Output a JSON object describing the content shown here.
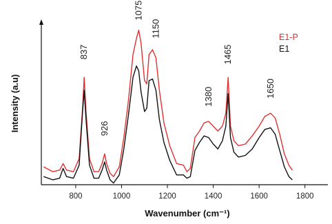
{
  "chart_data": {
    "type": "line",
    "xlabel": "Wavenumber (cm⁻¹)",
    "ylabel": "Intensity (a.u)",
    "xlim": [
      650,
      1900
    ],
    "ylim": [
      0,
      1.0
    ],
    "x_ticks": [
      800,
      1000,
      1200,
      1400,
      1600,
      1800
    ],
    "legend_position": "top-right",
    "series": [
      {
        "name": "E1-P",
        "color": "#e03030",
        "x": [
          660,
          700,
          730,
          745,
          760,
          790,
          815,
          830,
          837,
          845,
          860,
          880,
          900,
          915,
          926,
          935,
          950,
          965,
          990,
          1010,
          1030,
          1050,
          1065,
          1075,
          1085,
          1100,
          1110,
          1120,
          1135,
          1150,
          1165,
          1185,
          1210,
          1240,
          1270,
          1285,
          1300,
          1320,
          1340,
          1360,
          1380,
          1400,
          1420,
          1440,
          1455,
          1465,
          1475,
          1490,
          1510,
          1540,
          1570,
          1600,
          1625,
          1650,
          1670,
          1690,
          1710,
          1730,
          1745
        ],
        "y": [
          0.11,
          0.08,
          0.09,
          0.13,
          0.09,
          0.08,
          0.16,
          0.47,
          0.66,
          0.45,
          0.16,
          0.08,
          0.08,
          0.13,
          0.19,
          0.13,
          0.07,
          0.05,
          0.11,
          0.29,
          0.52,
          0.8,
          0.9,
          0.95,
          0.87,
          0.64,
          0.62,
          0.8,
          0.83,
          0.78,
          0.58,
          0.38,
          0.24,
          0.13,
          0.12,
          0.08,
          0.1,
          0.29,
          0.33,
          0.38,
          0.39,
          0.36,
          0.33,
          0.36,
          0.44,
          0.66,
          0.36,
          0.27,
          0.24,
          0.25,
          0.3,
          0.36,
          0.42,
          0.44,
          0.41,
          0.31,
          0.19,
          0.12,
          0.09
        ]
      },
      {
        "name": "E1",
        "color": "#111111",
        "x": [
          660,
          700,
          730,
          745,
          760,
          790,
          815,
          830,
          837,
          845,
          860,
          880,
          900,
          915,
          926,
          935,
          950,
          965,
          990,
          1010,
          1030,
          1050,
          1065,
          1075,
          1085,
          1100,
          1110,
          1120,
          1135,
          1150,
          1165,
          1185,
          1210,
          1240,
          1270,
          1285,
          1300,
          1320,
          1340,
          1360,
          1380,
          1400,
          1420,
          1440,
          1455,
          1465,
          1475,
          1490,
          1510,
          1540,
          1570,
          1600,
          1625,
          1650,
          1670,
          1690,
          1710,
          1730,
          1745
        ],
        "y": [
          0.05,
          0.03,
          0.04,
          0.1,
          0.05,
          0.04,
          0.12,
          0.45,
          0.58,
          0.4,
          0.12,
          0.04,
          0.04,
          0.09,
          0.14,
          0.09,
          0.03,
          0.01,
          0.06,
          0.22,
          0.43,
          0.66,
          0.73,
          0.7,
          0.57,
          0.45,
          0.47,
          0.64,
          0.65,
          0.58,
          0.4,
          0.26,
          0.15,
          0.06,
          0.06,
          0.04,
          0.05,
          0.21,
          0.26,
          0.3,
          0.29,
          0.25,
          0.22,
          0.27,
          0.36,
          0.56,
          0.29,
          0.2,
          0.17,
          0.18,
          0.22,
          0.29,
          0.34,
          0.35,
          0.31,
          0.21,
          0.11,
          0.05,
          0.03
        ]
      }
    ],
    "annotations": [
      {
        "text": "837",
        "x": 837,
        "y": 0.77
      },
      {
        "text": "926",
        "x": 926,
        "y": 0.3
      },
      {
        "text": "1075",
        "x": 1075,
        "y": 1.01
      },
      {
        "text": "1150",
        "x": 1150,
        "y": 0.9
      },
      {
        "text": "1380",
        "x": 1380,
        "y": 0.48
      },
      {
        "text": "1465",
        "x": 1465,
        "y": 0.74
      },
      {
        "text": "1650",
        "x": 1650,
        "y": 0.53
      }
    ]
  }
}
